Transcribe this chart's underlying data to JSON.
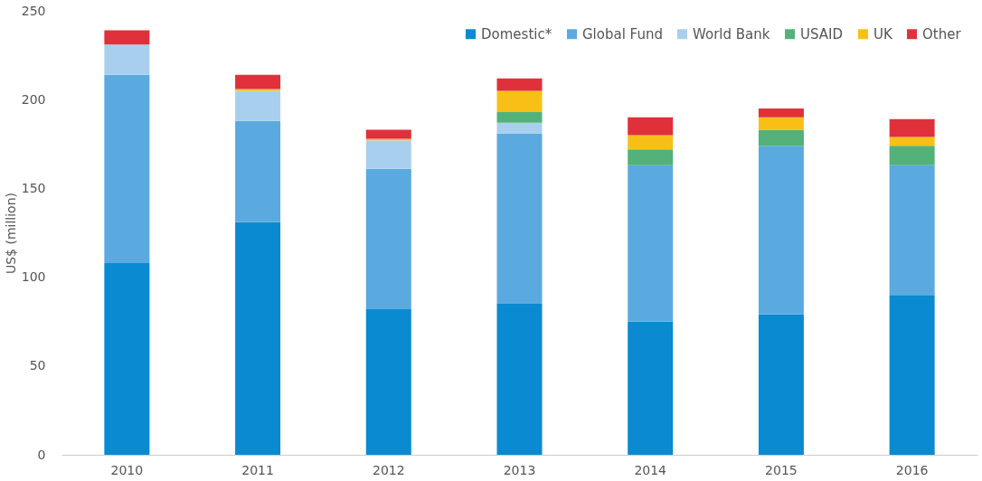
{
  "chart_data": {
    "type": "bar",
    "stacked": true,
    "ylabel": "US$ (million)",
    "categories": [
      "2010",
      "2011",
      "2012",
      "2013",
      "2014",
      "2015",
      "2016"
    ],
    "series": [
      {
        "name": "Domestic*",
        "color": "#0a8ad0",
        "values": [
          108,
          131,
          82,
          85,
          75,
          79,
          90
        ]
      },
      {
        "name": "Global Fund",
        "color": "#5aaae0",
        "values": [
          106,
          57,
          79,
          96,
          88,
          95,
          73
        ]
      },
      {
        "name": "World Bank",
        "color": "#a8d0ee",
        "values": [
          17,
          17,
          16,
          6,
          0,
          0,
          0
        ]
      },
      {
        "name": "USAID",
        "color": "#52b27a",
        "values": [
          0,
          0,
          0,
          6,
          9,
          9,
          11
        ]
      },
      {
        "name": "UK",
        "color": "#f8c016",
        "values": [
          0,
          1,
          1,
          12,
          8,
          7,
          5
        ]
      },
      {
        "name": "Other",
        "color": "#e0313a",
        "values": [
          8,
          8,
          5,
          7,
          10,
          5,
          10
        ]
      }
    ],
    "ylim": [
      0,
      250
    ],
    "yticks": [
      0,
      50,
      100,
      150,
      200,
      250
    ],
    "grid": false,
    "legend": "top right"
  }
}
